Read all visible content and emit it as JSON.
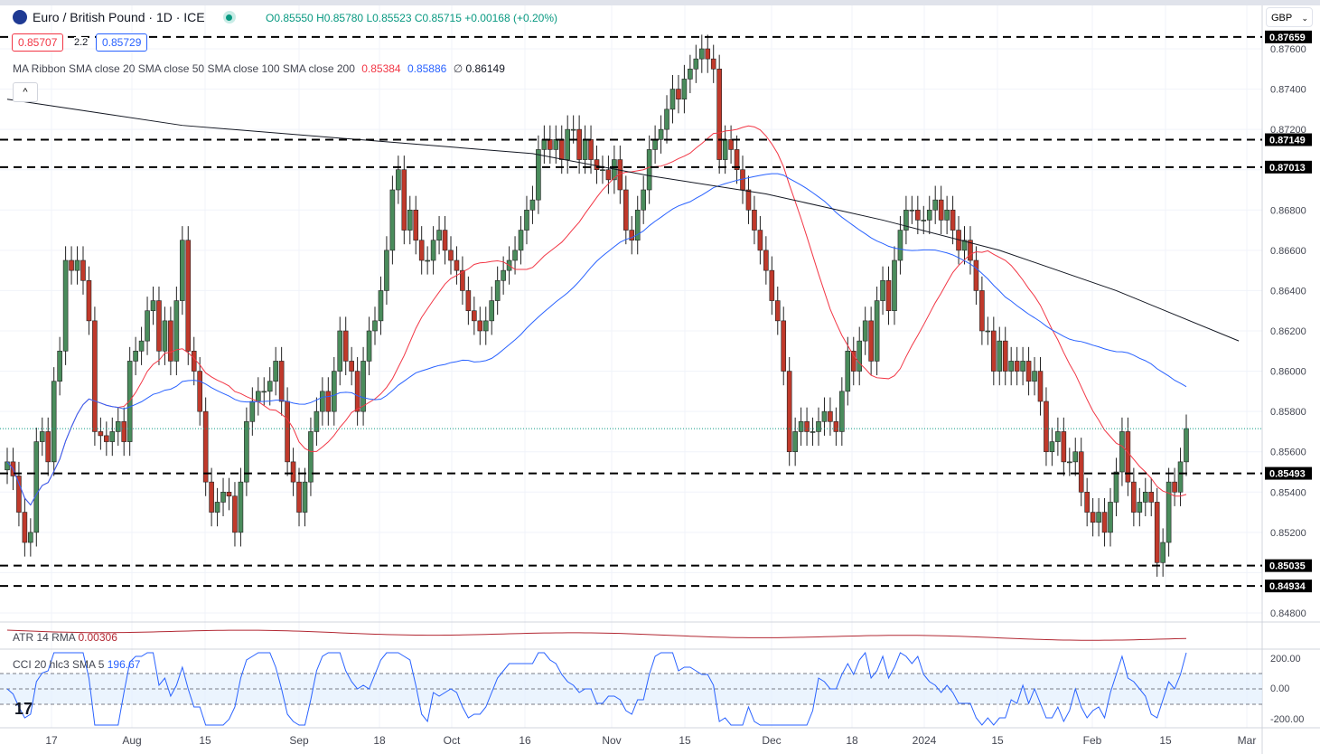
{
  "header": {
    "symbol": "Euro / British Pound · 1D · ICE",
    "open": "O0.85550",
    "high": "H0.85780",
    "low": "L0.85523",
    "close": "C0.85715",
    "change": "+0.00168 (+0.20%)",
    "bid": "0.85707",
    "spread": "2.2",
    "ask": "0.85729"
  },
  "ma_ribbon": {
    "label": "MA Ribbon SMA close 20 SMA close 50 SMA close 100 SMA close 200",
    "v20": "0.85384",
    "v50": "0.85886",
    "v100": "∅",
    "v200": "0.86149"
  },
  "atr": {
    "label": "ATR 14 RMA",
    "value": "0.00306"
  },
  "cci": {
    "label": "CCI 20 hlc3 SMA 5",
    "value": "196.67",
    "ticks": [
      "200.00",
      "0.00",
      "-200.00"
    ]
  },
  "currency": "GBP",
  "colors": {
    "up": "#4a8c5c",
    "down": "#c0392b",
    "sma20": "#f23645",
    "sma50": "#2962ff",
    "sma200": "#131722",
    "cci": "#2962ff",
    "atr": "#b22833"
  },
  "chart_data": {
    "type": "candlestick",
    "ylim": [
      0.8472,
      0.8772
    ],
    "y_ticks": [
      "0.87600",
      "0.87400",
      "0.87200",
      "0.86800",
      "0.86600",
      "0.86400",
      "0.86200",
      "0.86000",
      "0.85800",
      "0.85600",
      "0.85400",
      "0.85200",
      "0.84800"
    ],
    "x_ticks": [
      "17",
      "Aug",
      "15",
      "Sep",
      "18",
      "Oct",
      "16",
      "Nov",
      "15",
      "Dec",
      "18",
      "2024",
      "15",
      "Feb",
      "15",
      "Mar"
    ],
    "levels": [
      "0.87659",
      "0.87149",
      "0.87013",
      "0.85493",
      "0.85035",
      "0.84934"
    ],
    "close": [
      0.8555,
      0.8548,
      0.853,
      0.8515,
      0.852,
      0.8565,
      0.857,
      0.8555,
      0.8595,
      0.861,
      0.8655,
      0.865,
      0.8655,
      0.8645,
      0.8625,
      0.857,
      0.8568,
      0.8565,
      0.857,
      0.8575,
      0.8565,
      0.8605,
      0.861,
      0.8615,
      0.863,
      0.8635,
      0.861,
      0.8625,
      0.8605,
      0.8635,
      0.8665,
      0.861,
      0.86,
      0.858,
      0.8545,
      0.853,
      0.8535,
      0.854,
      0.8538,
      0.852,
      0.8545,
      0.8575,
      0.8585,
      0.859,
      0.859,
      0.8595,
      0.8605,
      0.8585,
      0.8555,
      0.8545,
      0.853,
      0.8545,
      0.857,
      0.858,
      0.859,
      0.858,
      0.86,
      0.862,
      0.8605,
      0.86,
      0.858,
      0.8605,
      0.862,
      0.8625,
      0.864,
      0.866,
      0.869,
      0.87,
      0.867,
      0.868,
      0.8665,
      0.8655,
      0.8655,
      0.8665,
      0.867,
      0.866,
      0.8655,
      0.865,
      0.864,
      0.863,
      0.8625,
      0.862,
      0.8625,
      0.8635,
      0.8645,
      0.865,
      0.8655,
      0.866,
      0.867,
      0.868,
      0.8685,
      0.871,
      0.8715,
      0.871,
      0.8715,
      0.8705,
      0.872,
      0.872,
      0.8705,
      0.8715,
      0.8705,
      0.87,
      0.87,
      0.8695,
      0.8705,
      0.869,
      0.867,
      0.8665,
      0.868,
      0.869,
      0.871,
      0.8715,
      0.872,
      0.873,
      0.874,
      0.8735,
      0.8745,
      0.875,
      0.8755,
      0.876,
      0.8755,
      0.875,
      0.8705,
      0.8715,
      0.871,
      0.87,
      0.869,
      0.868,
      0.867,
      0.866,
      0.865,
      0.8635,
      0.8625,
      0.86,
      0.856,
      0.857,
      0.8575,
      0.857,
      0.857,
      0.8575,
      0.858,
      0.8575,
      0.857,
      0.859,
      0.861,
      0.86,
      0.8615,
      0.8625,
      0.8605,
      0.8635,
      0.8645,
      0.863,
      0.8655,
      0.867,
      0.868,
      0.868,
      0.8675,
      0.8675,
      0.868,
      0.8685,
      0.8675,
      0.868,
      0.867,
      0.866,
      0.8665,
      0.8655,
      0.864,
      0.862,
      0.862,
      0.86,
      0.8615,
      0.86,
      0.8605,
      0.86,
      0.8605,
      0.8595,
      0.86,
      0.8585,
      0.856,
      0.8565,
      0.857,
      0.8555,
      0.8555,
      0.856,
      0.854,
      0.853,
      0.8525,
      0.853,
      0.852,
      0.8535,
      0.855,
      0.857,
      0.8545,
      0.853,
      0.8535,
      0.854,
      0.8535,
      0.8505,
      0.8515,
      0.8545,
      0.854,
      0.8555,
      0.85715
    ],
    "sma200": [
      [
        0,
        0.8735
      ],
      [
        30,
        0.8722
      ],
      [
        60,
        0.8715
      ],
      [
        90,
        0.8708
      ],
      [
        110,
        0.8697
      ],
      [
        130,
        0.8688
      ],
      [
        150,
        0.8675
      ],
      [
        170,
        0.866
      ],
      [
        190,
        0.864
      ],
      [
        211,
        0.8615
      ]
    ]
  }
}
